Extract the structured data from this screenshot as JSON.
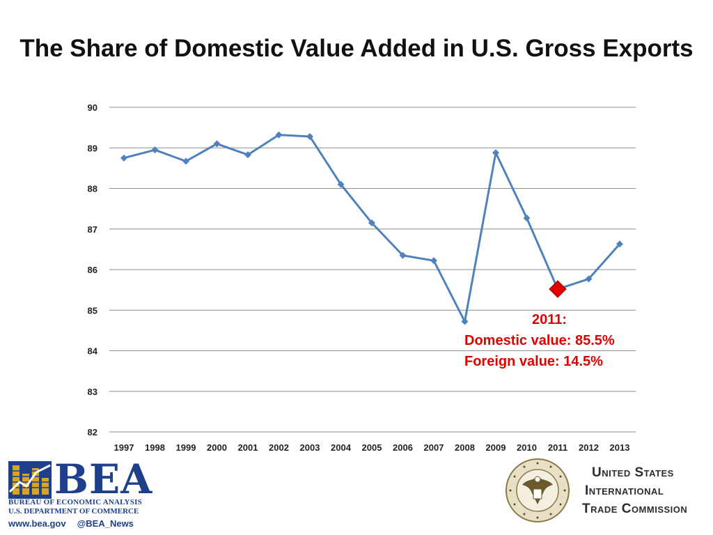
{
  "slide": {
    "title": "The Share of Domestic Value Added in U.S. Gross Exports"
  },
  "chart_data": {
    "type": "line",
    "title": "",
    "xlabel": "",
    "ylabel": "",
    "x": [
      "1997",
      "1998",
      "1999",
      "2000",
      "2001",
      "2002",
      "2003",
      "2004",
      "2005",
      "2006",
      "2007",
      "2008",
      "2009",
      "2010",
      "2011",
      "2012",
      "2013"
    ],
    "series": [
      {
        "values": [
          88.75,
          88.95,
          88.67,
          89.1,
          88.83,
          89.32,
          89.28,
          88.1,
          87.15,
          86.35,
          86.22,
          84.72,
          88.88,
          87.27,
          85.52,
          85.77,
          86.63
        ]
      }
    ],
    "ylim": [
      82,
      90
    ],
    "yticks": [
      82,
      83,
      84,
      85,
      86,
      87,
      88,
      89,
      90
    ],
    "grid": true,
    "legend": "none",
    "line_color": "#4f81bd",
    "highlight": {
      "x": "2011",
      "value": 85.52,
      "color": "#e00000"
    },
    "annotation": {
      "year_label": "2011:",
      "domestic": "Domestic value: 85.5%",
      "foreign": "Foreign value: 14.5%",
      "color": "#e00000"
    }
  },
  "logos": {
    "bea": {
      "letters": "BEA",
      "subtitle1": "BUREAU OF ECONOMIC ANALYSIS",
      "subtitle2": "U.S. DEPARTMENT OF COMMERCE",
      "website": "www.bea.gov",
      "twitter": "@BEA_News",
      "color": "#1e3f8a"
    },
    "usitc": {
      "line1": "United States",
      "line2": "International",
      "line3": "Trade Commission",
      "seal_text": "UNITED STATES INTERNATIONAL TRADE COMMISSION"
    }
  }
}
